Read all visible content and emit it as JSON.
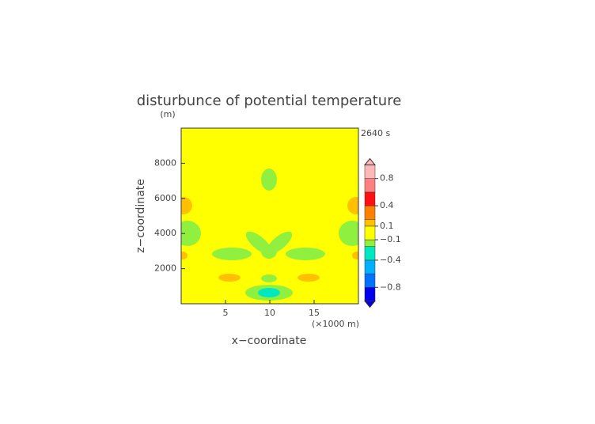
{
  "chart_data": {
    "type": "contour",
    "title": "disturbunce of potential temperature",
    "y_unit": "(m)",
    "time_label": "2640 s",
    "ylabel": "z−coordinate",
    "xlabel": "x−coordinate",
    "x_unit": "(×1000 m)",
    "xlim": [
      0,
      20
    ],
    "xticks": [
      5,
      10,
      15
    ],
    "ylim": [
      0,
      10000
    ],
    "yticks": [
      2000,
      4000,
      6000,
      8000
    ],
    "background_color": "#ffff00",
    "colorbar": {
      "lim": [
        -1,
        1
      ],
      "bounds": [
        -1,
        -0.8,
        -0.6,
        -0.4,
        -0.2,
        -0.1,
        0.1,
        0.2,
        0.4,
        0.6,
        0.8,
        1
      ],
      "colors": [
        "#0000ee",
        "#0070ff",
        "#00b0ff",
        "#00e8c0",
        "#90f040",
        "#ffff00",
        "#ffc000",
        "#ff8000",
        "#ff1010",
        "#ff8080",
        "#ffb8b8"
      ],
      "ticks": [
        {
          "value": 0.8,
          "label": "0.8"
        },
        {
          "value": 0.4,
          "label": "0.4"
        },
        {
          "value": 0.1,
          "label": "0.1"
        },
        {
          "value": -0.1,
          "label": "−0.1"
        },
        {
          "value": -0.4,
          "label": "−0.4"
        },
        {
          "value": -0.8,
          "label": "−0.8"
        }
      ]
    }
  }
}
